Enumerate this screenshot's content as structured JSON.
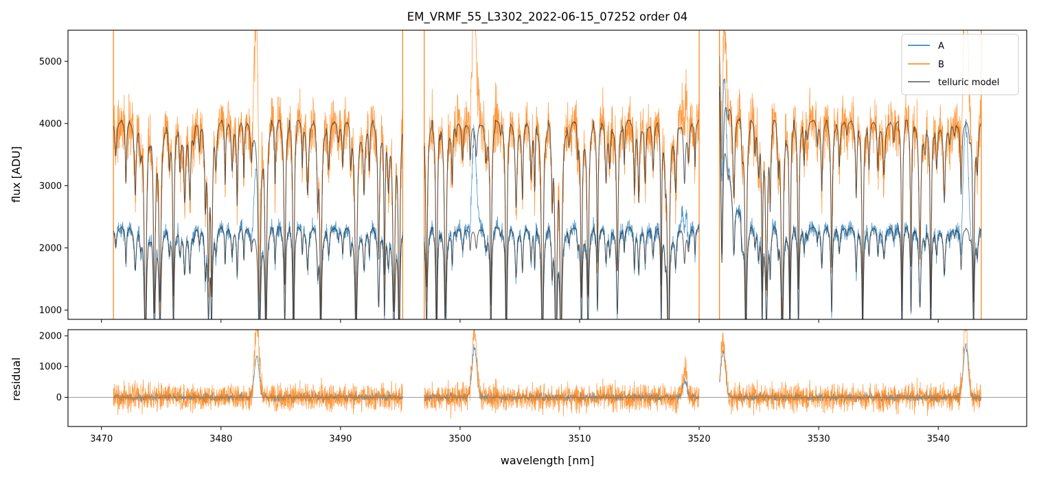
{
  "chart_data": [
    {
      "type": "line",
      "panel": "top",
      "title": "EM_VRMF_55_L3302_2022-06-15_07252  order 04",
      "xlabel": "",
      "ylabel": "flux [ADU]",
      "xlim": [
        3467.2,
        3547.4
      ],
      "ylim": [
        850,
        5500
      ],
      "yticks": [
        1000,
        2000,
        3000,
        4000,
        5000
      ],
      "xticks": [
        3470,
        3480,
        3490,
        3500,
        3510,
        3520,
        3530,
        3540
      ],
      "segments": [
        [
          3471.0,
          3495.2
        ],
        [
          3497.0,
          3520.0
        ],
        [
          3521.7,
          3543.6
        ]
      ],
      "series": [
        {
          "name": "A",
          "color": "#1f77b4",
          "baseline": 2330,
          "noise": 200
        },
        {
          "name": "B",
          "color": "#ff7f0e",
          "baseline": 4050,
          "noise": 650
        },
        {
          "name": "telluric model",
          "color": "#555555",
          "baseline_A": 2330,
          "baseline_B": 4050
        }
      ],
      "legend": {
        "position": "top-right",
        "entries": [
          "A",
          "B",
          "telluric model"
        ]
      }
    },
    {
      "type": "line",
      "panel": "bottom",
      "xlabel": "wavelength [nm]",
      "ylabel": "residual",
      "xlim": [
        3467.2,
        3547.4
      ],
      "ylim": [
        -950,
        2200
      ],
      "yticks": [
        0,
        1000,
        2000
      ],
      "xticks": [
        3470,
        3480,
        3490,
        3500,
        3510,
        3520,
        3530,
        3540
      ],
      "xtick_labels": [
        "3470",
        "3480",
        "3490",
        "3500",
        "3510",
        "3520",
        "3530",
        "3540"
      ],
      "zero_line": 0,
      "series": [
        {
          "name": "A residual",
          "color": "#1f77b4",
          "noise": 150
        },
        {
          "name": "B residual",
          "color": "#ff7f0e",
          "noise": 450
        }
      ],
      "peaks": [
        {
          "x": 3483.0,
          "A": 1300,
          "B": 2300
        },
        {
          "x": 3501.2,
          "A": 1600,
          "B": 2200
        },
        {
          "x": 3518.8,
          "A": 500,
          "B": 800
        },
        {
          "x": 3522.0,
          "A": 1500,
          "B": 1800
        },
        {
          "x": 3542.3,
          "A": 1700,
          "B": 2300
        }
      ]
    }
  ]
}
